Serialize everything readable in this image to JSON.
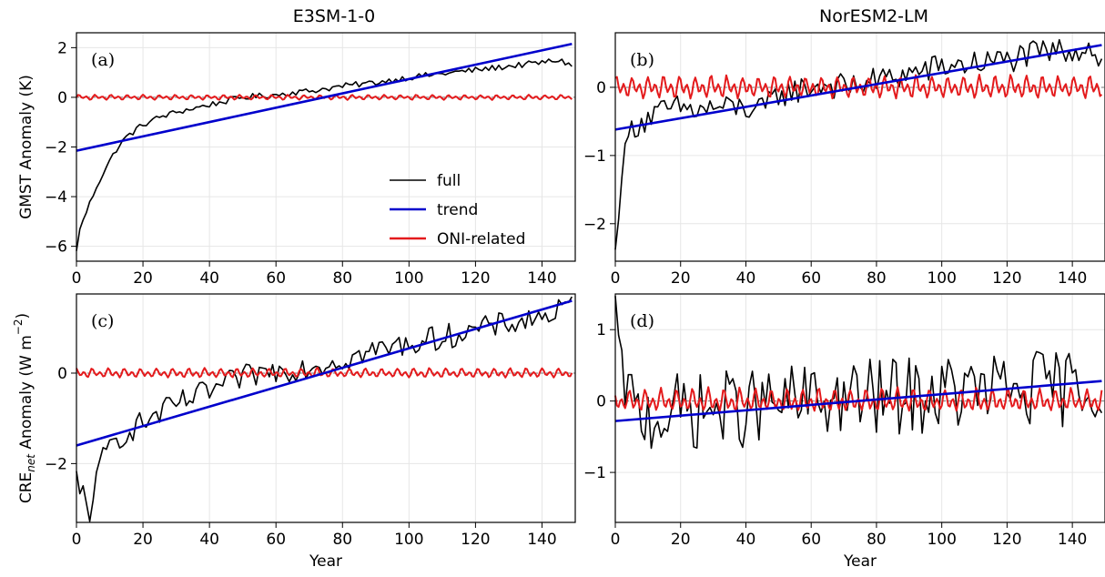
{
  "column_titles": [
    "E3SM-1-0",
    "NorESM2-LM"
  ],
  "legend": {
    "entries": [
      "full",
      "trend",
      "ONI-related"
    ]
  },
  "colors": {
    "full": "#000000",
    "trend": "#0000cc",
    "oni": "#e41a1c",
    "zero_line": "#777777",
    "grid": "#e6e6e6"
  },
  "chart_data": [
    {
      "panel": "(a)",
      "model": "E3SM-1-0",
      "type": "line",
      "xlabel": "",
      "ylabel": "GMST Anomaly (K)",
      "xlim": [
        0,
        150
      ],
      "ylim": [
        -6.6,
        2.6
      ],
      "xticks": [
        0,
        20,
        40,
        60,
        80,
        100,
        120,
        140
      ],
      "yticks": [
        -6,
        -4,
        -2,
        0,
        2
      ],
      "full_keypoints": {
        "x": [
          0,
          1,
          3,
          6,
          9,
          12,
          15,
          20,
          25,
          30,
          35,
          40,
          45,
          50,
          55,
          60,
          65,
          70,
          75,
          80,
          90,
          100,
          110,
          120,
          130,
          140,
          145,
          149
        ],
        "y": [
          -6.2,
          -5.3,
          -4.6,
          -3.6,
          -2.8,
          -2.1,
          -1.6,
          -1.1,
          -0.8,
          -0.6,
          -0.45,
          -0.3,
          -0.15,
          0.0,
          0.05,
          0.1,
          0.2,
          0.25,
          0.35,
          0.45,
          0.6,
          0.8,
          0.95,
          1.1,
          1.25,
          1.4,
          1.5,
          1.3
        ]
      },
      "full_noise": 0.12,
      "trend": {
        "x": [
          0,
          149
        ],
        "y": [
          -2.15,
          2.15
        ]
      },
      "oni_amplitude": 0.12
    },
    {
      "panel": "(b)",
      "model": "NorESM2-LM",
      "type": "line",
      "xlabel": "",
      "ylabel": "",
      "xlim": [
        0,
        150
      ],
      "ylim": [
        -2.55,
        0.8
      ],
      "xticks": [
        0,
        20,
        40,
        60,
        80,
        100,
        120,
        140
      ],
      "yticks": [
        -2,
        -1,
        0
      ],
      "full_keypoints": {
        "x": [
          0,
          1,
          2,
          4,
          6,
          10,
          15,
          20,
          25,
          30,
          35,
          40,
          45,
          50,
          55,
          60,
          65,
          70,
          75,
          80,
          90,
          100,
          110,
          120,
          130,
          140,
          145,
          149
        ],
        "y": [
          -2.4,
          -1.9,
          -1.3,
          -0.7,
          -0.55,
          -0.45,
          -0.35,
          -0.3,
          -0.35,
          -0.3,
          -0.3,
          -0.3,
          -0.35,
          -0.1,
          -0.05,
          0.0,
          0.05,
          0.0,
          0.05,
          0.1,
          0.2,
          0.3,
          0.35,
          0.4,
          0.5,
          0.55,
          0.6,
          0.4
        ]
      },
      "full_noise": 0.2,
      "trend": {
        "x": [
          0,
          149
        ],
        "y": [
          -0.62,
          0.62
        ]
      },
      "oni_amplitude": 0.2
    },
    {
      "panel": "(c)",
      "model": "E3SM-1-0",
      "type": "line",
      "xlabel": "Year",
      "ylabel": "CRE_net Anomaly (W m⁻²)",
      "ylabel_main": "CRE",
      "ylabel_sub": "net",
      "ylabel_rest": " Anomaly (W m",
      "ylabel_sup": "−2",
      "ylabel_close": ")",
      "xlim": [
        0,
        150
      ],
      "ylim": [
        -3.3,
        1.75
      ],
      "xticks": [
        0,
        20,
        40,
        60,
        80,
        100,
        120,
        140
      ],
      "yticks": [
        -2,
        0
      ],
      "full_keypoints": {
        "x": [
          0,
          1,
          2,
          3,
          4,
          6,
          8,
          10,
          15,
          20,
          25,
          30,
          35,
          40,
          45,
          50,
          55,
          60,
          65,
          70,
          80,
          90,
          100,
          110,
          120,
          130,
          140,
          145,
          149
        ],
        "y": [
          -2.2,
          -2.7,
          -2.5,
          -2.9,
          -3.05,
          -2.4,
          -1.9,
          -1.6,
          -1.3,
          -1.1,
          -0.9,
          -0.7,
          -0.55,
          -0.4,
          -0.25,
          -0.1,
          0.0,
          0.05,
          0.1,
          0.15,
          0.3,
          0.5,
          0.65,
          0.8,
          0.95,
          1.1,
          1.25,
          1.35,
          1.5
        ]
      },
      "full_noise": 0.28,
      "trend": {
        "x": [
          0,
          149
        ],
        "y": [
          -1.6,
          1.6
        ]
      },
      "oni_amplitude": 0.13
    },
    {
      "panel": "(d)",
      "model": "NorESM2-LM",
      "type": "line",
      "xlabel": "Year",
      "ylabel": "",
      "xlim": [
        0,
        150
      ],
      "ylim": [
        -1.7,
        1.5
      ],
      "xticks": [
        0,
        20,
        40,
        60,
        80,
        100,
        120,
        140
      ],
      "yticks": [
        -1,
        0,
        1
      ],
      "full_keypoints": {
        "x": [
          0,
          1,
          2,
          4,
          6,
          10,
          20,
          40,
          60,
          80,
          100,
          120,
          140,
          149
        ],
        "y": [
          1.4,
          0.9,
          0.6,
          0.1,
          -0.2,
          -0.2,
          -0.15,
          -0.1,
          0.0,
          0.05,
          0.1,
          0.15,
          0.2,
          0.25
        ]
      },
      "full_noise": 0.55,
      "trend": {
        "x": [
          0,
          149
        ],
        "y": [
          -0.28,
          0.28
        ]
      },
      "oni_amplitude": 0.2
    }
  ]
}
